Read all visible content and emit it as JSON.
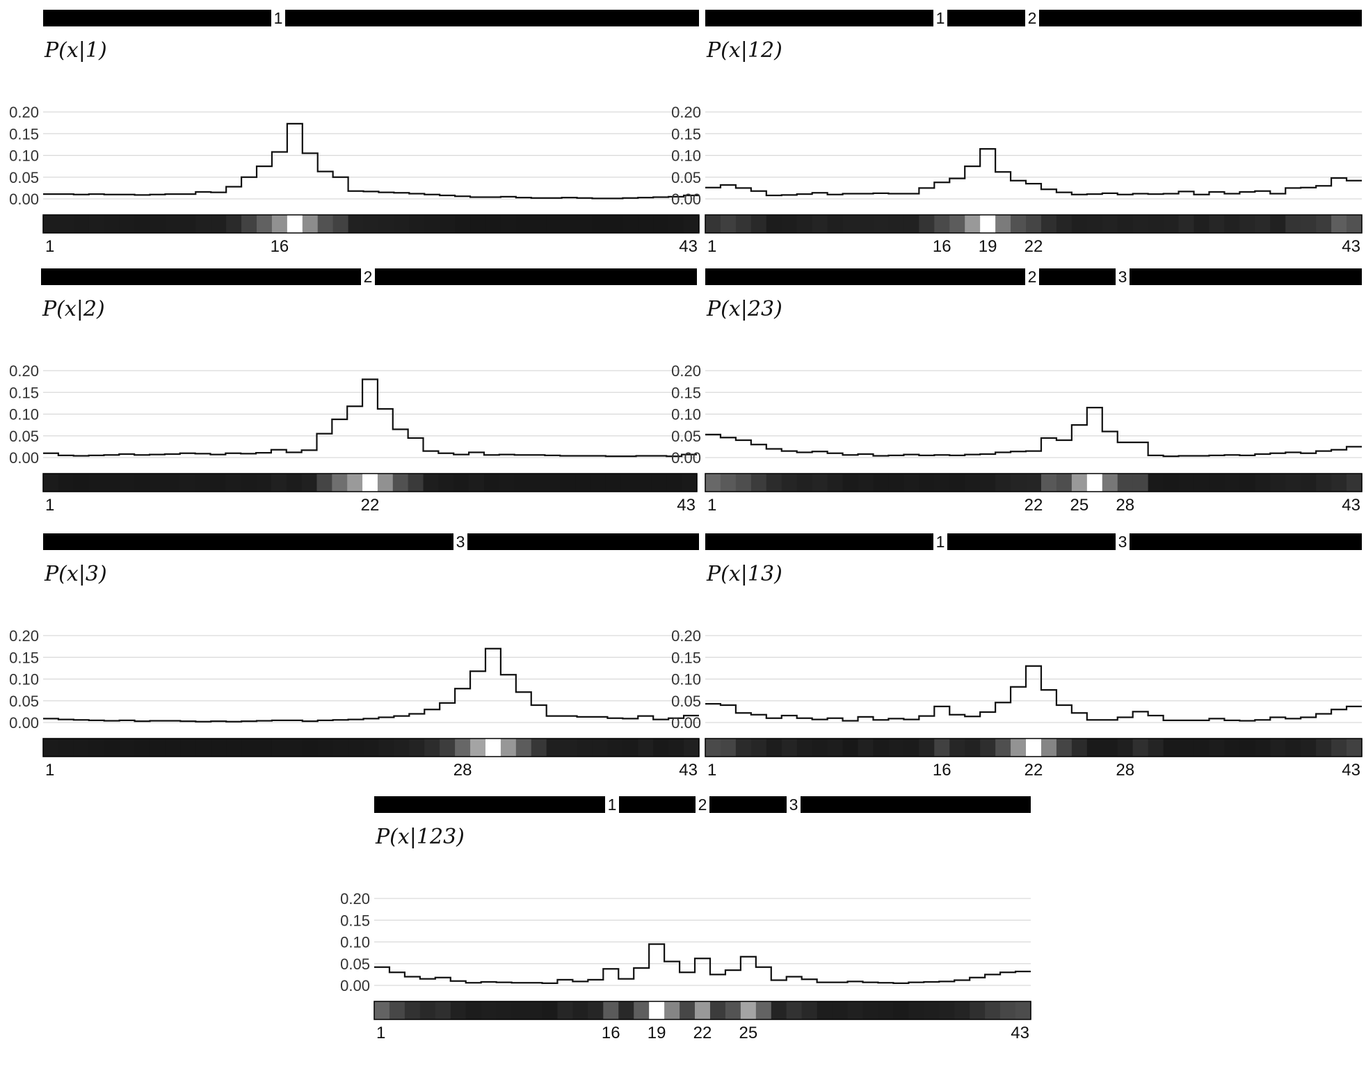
{
  "chart_data": [
    {
      "type": "step-histogram",
      "title": "P(x|1)",
      "markers": [
        "1"
      ],
      "ylim": [
        0,
        0.2
      ],
      "yticks": [
        "0.00",
        "0.05",
        "0.10",
        "0.15",
        "0.20"
      ],
      "x_labels": [
        "1",
        "16",
        "43"
      ],
      "x": [
        1,
        2,
        3,
        4,
        5,
        6,
        7,
        8,
        9,
        10,
        11,
        12,
        13,
        14,
        15,
        16,
        17,
        18,
        19,
        20,
        21,
        22,
        23,
        24,
        25,
        26,
        27,
        28,
        29,
        30,
        31,
        32,
        33,
        34,
        35,
        36,
        37,
        38,
        39,
        40,
        41,
        42,
        43
      ],
      "values": [
        0.011,
        0.011,
        0.01,
        0.011,
        0.01,
        0.01,
        0.009,
        0.01,
        0.011,
        0.011,
        0.016,
        0.015,
        0.028,
        0.05,
        0.075,
        0.108,
        0.173,
        0.105,
        0.063,
        0.05,
        0.018,
        0.017,
        0.015,
        0.014,
        0.012,
        0.01,
        0.008,
        0.006,
        0.004,
        0.004,
        0.005,
        0.003,
        0.002,
        0.002,
        0.003,
        0.002,
        0.001,
        0.001,
        0.002,
        0.003,
        0.004,
        0.005,
        0.008
      ]
    },
    {
      "type": "step-histogram",
      "title": "P(x|12)",
      "markers": [
        "1",
        "2"
      ],
      "ylim": [
        0,
        0.2
      ],
      "yticks": [
        "0.00",
        "0.05",
        "0.10",
        "0.15",
        "0.20"
      ],
      "x_labels": [
        "1",
        "16",
        "19",
        "22",
        "43"
      ],
      "x": [
        1,
        2,
        3,
        4,
        5,
        6,
        7,
        8,
        9,
        10,
        11,
        12,
        13,
        14,
        15,
        16,
        17,
        18,
        19,
        20,
        21,
        22,
        23,
        24,
        25,
        26,
        27,
        28,
        29,
        30,
        31,
        32,
        33,
        34,
        35,
        36,
        37,
        38,
        39,
        40,
        41,
        42,
        43
      ],
      "values": [
        0.026,
        0.032,
        0.025,
        0.018,
        0.008,
        0.009,
        0.011,
        0.014,
        0.01,
        0.012,
        0.012,
        0.013,
        0.012,
        0.012,
        0.025,
        0.038,
        0.047,
        0.075,
        0.115,
        0.062,
        0.042,
        0.035,
        0.022,
        0.015,
        0.01,
        0.011,
        0.013,
        0.01,
        0.012,
        0.011,
        0.012,
        0.017,
        0.01,
        0.016,
        0.012,
        0.016,
        0.018,
        0.012,
        0.025,
        0.026,
        0.03,
        0.048,
        0.042
      ]
    },
    {
      "type": "step-histogram",
      "title": "P(x|2)",
      "markers": [
        "2"
      ],
      "ylim": [
        0,
        0.2
      ],
      "yticks": [
        "0.00",
        "0.05",
        "0.10",
        "0.15",
        "0.20"
      ],
      "x_labels": [
        "1",
        "22",
        "43"
      ],
      "x": [
        1,
        2,
        3,
        4,
        5,
        6,
        7,
        8,
        9,
        10,
        11,
        12,
        13,
        14,
        15,
        16,
        17,
        18,
        19,
        20,
        21,
        22,
        23,
        24,
        25,
        26,
        27,
        28,
        29,
        30,
        31,
        32,
        33,
        34,
        35,
        36,
        37,
        38,
        39,
        40,
        41,
        42,
        43
      ],
      "values": [
        0.01,
        0.005,
        0.004,
        0.005,
        0.006,
        0.008,
        0.006,
        0.007,
        0.008,
        0.01,
        0.009,
        0.007,
        0.01,
        0.009,
        0.011,
        0.018,
        0.012,
        0.017,
        0.055,
        0.088,
        0.118,
        0.18,
        0.112,
        0.065,
        0.045,
        0.015,
        0.01,
        0.007,
        0.012,
        0.006,
        0.007,
        0.006,
        0.006,
        0.005,
        0.004,
        0.004,
        0.004,
        0.003,
        0.003,
        0.004,
        0.004,
        0.003,
        0.007
      ]
    },
    {
      "type": "step-histogram",
      "title": "P(x|23)",
      "markers": [
        "2",
        "3"
      ],
      "ylim": [
        0,
        0.2
      ],
      "yticks": [
        "0.00",
        "0.05",
        "0.10",
        "0.15",
        "0.20"
      ],
      "x_labels": [
        "1",
        "22",
        "25",
        "28",
        "43"
      ],
      "x": [
        1,
        2,
        3,
        4,
        5,
        6,
        7,
        8,
        9,
        10,
        11,
        12,
        13,
        14,
        15,
        16,
        17,
        18,
        19,
        20,
        21,
        22,
        23,
        24,
        25,
        26,
        27,
        28,
        29,
        30,
        31,
        32,
        33,
        34,
        35,
        36,
        37,
        38,
        39,
        40,
        41,
        42,
        43
      ],
      "values": [
        0.053,
        0.046,
        0.04,
        0.03,
        0.02,
        0.015,
        0.012,
        0.014,
        0.01,
        0.006,
        0.008,
        0.004,
        0.005,
        0.007,
        0.005,
        0.006,
        0.005,
        0.007,
        0.008,
        0.012,
        0.014,
        0.015,
        0.045,
        0.04,
        0.075,
        0.115,
        0.06,
        0.035,
        0.035,
        0.005,
        0.003,
        0.004,
        0.004,
        0.005,
        0.006,
        0.005,
        0.008,
        0.01,
        0.012,
        0.01,
        0.015,
        0.018,
        0.025
      ]
    },
    {
      "type": "step-histogram",
      "title": "P(x|3)",
      "markers": [
        "3"
      ],
      "ylim": [
        0,
        0.2
      ],
      "yticks": [
        "0.00",
        "0.05",
        "0.10",
        "0.15",
        "0.20"
      ],
      "x_labels": [
        "1",
        "28",
        "43"
      ],
      "x": [
        1,
        2,
        3,
        4,
        5,
        6,
        7,
        8,
        9,
        10,
        11,
        12,
        13,
        14,
        15,
        16,
        17,
        18,
        19,
        20,
        21,
        22,
        23,
        24,
        25,
        26,
        27,
        28,
        29,
        30,
        31,
        32,
        33,
        34,
        35,
        36,
        37,
        38,
        39,
        40,
        41,
        42,
        43
      ],
      "values": [
        0.009,
        0.007,
        0.006,
        0.005,
        0.004,
        0.005,
        0.003,
        0.004,
        0.004,
        0.003,
        0.002,
        0.003,
        0.002,
        0.003,
        0.004,
        0.005,
        0.005,
        0.003,
        0.005,
        0.006,
        0.007,
        0.009,
        0.012,
        0.015,
        0.02,
        0.03,
        0.045,
        0.078,
        0.118,
        0.17,
        0.11,
        0.07,
        0.04,
        0.015,
        0.015,
        0.013,
        0.013,
        0.01,
        0.009,
        0.015,
        0.007,
        0.01,
        0.016
      ]
    },
    {
      "type": "step-histogram",
      "title": "P(x|13)",
      "markers": [
        "1",
        "3"
      ],
      "ylim": [
        0,
        0.2
      ],
      "yticks": [
        "0.00",
        "0.05",
        "0.10",
        "0.15",
        "0.20"
      ],
      "x_labels": [
        "1",
        "16",
        "22",
        "28",
        "43"
      ],
      "x": [
        1,
        2,
        3,
        4,
        5,
        6,
        7,
        8,
        9,
        10,
        11,
        12,
        13,
        14,
        15,
        16,
        17,
        18,
        19,
        20,
        21,
        22,
        23,
        24,
        25,
        26,
        27,
        28,
        29,
        30,
        31,
        32,
        33,
        34,
        35,
        36,
        37,
        38,
        39,
        40,
        41,
        42,
        43
      ],
      "values": [
        0.043,
        0.04,
        0.022,
        0.018,
        0.01,
        0.016,
        0.01,
        0.007,
        0.01,
        0.004,
        0.013,
        0.006,
        0.009,
        0.007,
        0.015,
        0.037,
        0.018,
        0.014,
        0.024,
        0.046,
        0.082,
        0.13,
        0.075,
        0.04,
        0.022,
        0.006,
        0.006,
        0.012,
        0.025,
        0.016,
        0.005,
        0.005,
        0.005,
        0.009,
        0.005,
        0.004,
        0.006,
        0.012,
        0.009,
        0.012,
        0.02,
        0.03,
        0.037
      ]
    },
    {
      "type": "step-histogram",
      "title": "P(x|123)",
      "markers": [
        "1",
        "2",
        "3"
      ],
      "ylim": [
        0,
        0.2
      ],
      "yticks": [
        "0.00",
        "0.05",
        "0.10",
        "0.15",
        "0.20"
      ],
      "x_labels": [
        "1",
        "16",
        "19",
        "22",
        "25",
        "43"
      ],
      "x": [
        1,
        2,
        3,
        4,
        5,
        6,
        7,
        8,
        9,
        10,
        11,
        12,
        13,
        14,
        15,
        16,
        17,
        18,
        19,
        20,
        21,
        22,
        23,
        24,
        25,
        26,
        27,
        28,
        29,
        30,
        31,
        32,
        33,
        34,
        35,
        36,
        37,
        38,
        39,
        40,
        41,
        42,
        43
      ],
      "values": [
        0.042,
        0.03,
        0.02,
        0.015,
        0.018,
        0.01,
        0.006,
        0.008,
        0.007,
        0.006,
        0.006,
        0.005,
        0.013,
        0.009,
        0.013,
        0.038,
        0.015,
        0.04,
        0.095,
        0.055,
        0.03,
        0.062,
        0.025,
        0.035,
        0.066,
        0.042,
        0.012,
        0.02,
        0.014,
        0.007,
        0.007,
        0.009,
        0.007,
        0.006,
        0.005,
        0.007,
        0.008,
        0.009,
        0.012,
        0.018,
        0.025,
        0.03,
        0.032
      ]
    }
  ]
}
